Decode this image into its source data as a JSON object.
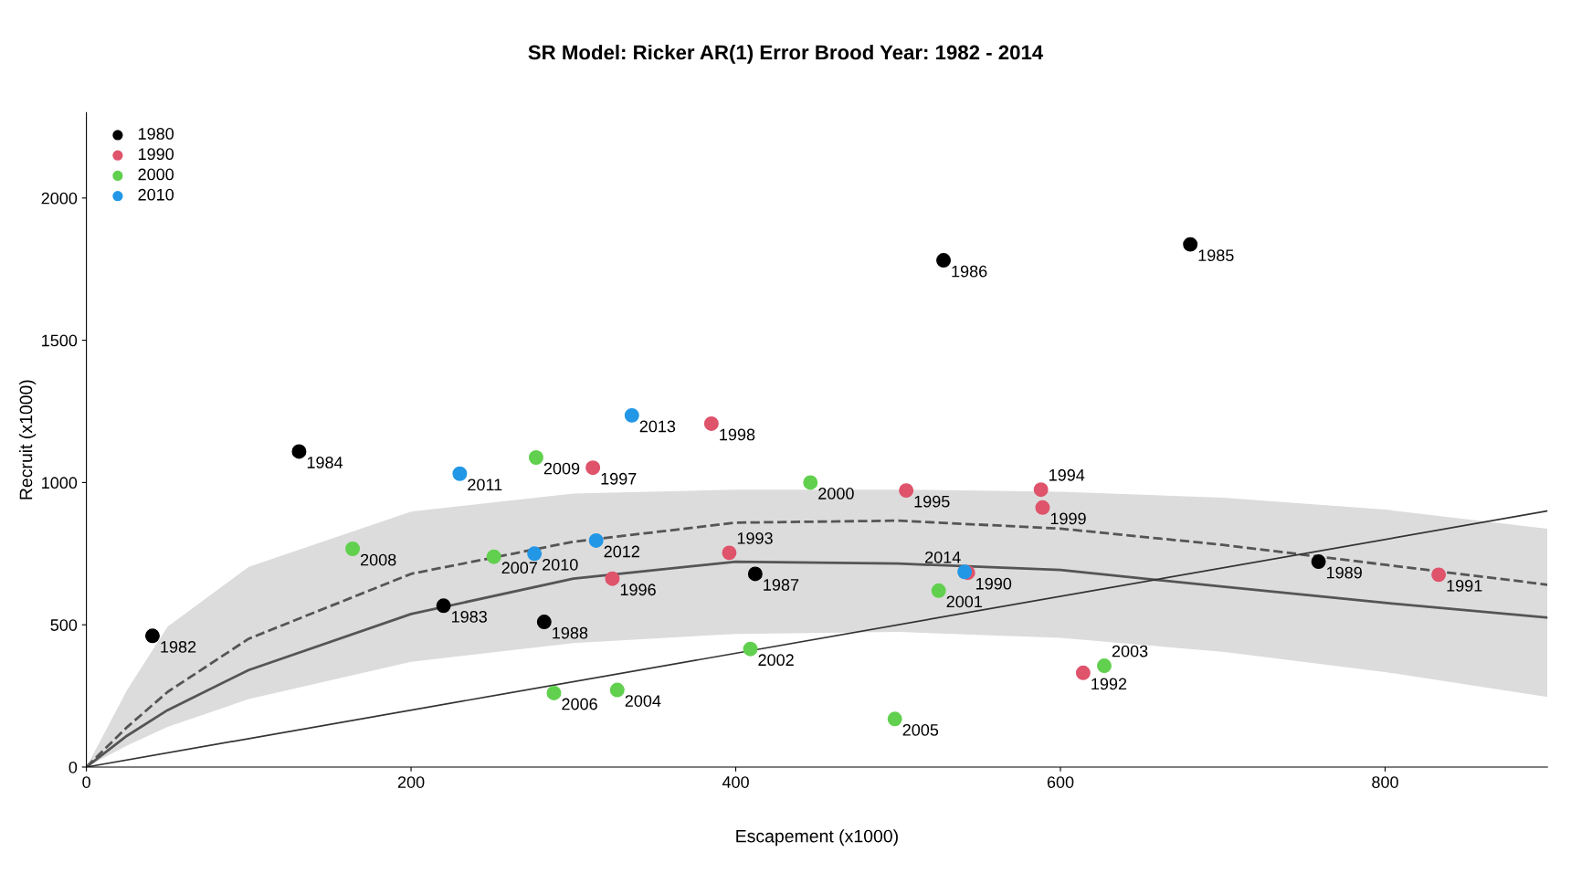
{
  "chart_data": {
    "type": "scatter",
    "title": "SR Model: Ricker AR(1) Error Brood Year: 1982 - 2014",
    "xlabel": "Escapement (x1000)",
    "ylabel": "Recruit (x1000)",
    "xlim": [
      0,
      900
    ],
    "ylim": [
      0,
      2300
    ],
    "xticks": [
      0,
      200,
      400,
      600,
      800
    ],
    "yticks": [
      0,
      500,
      1000,
      1500,
      2000
    ],
    "grid": false,
    "legend": "top left",
    "marker": "circle",
    "series": [
      {
        "name": "1980",
        "color": "#000000",
        "x": [
          40.7,
          220,
          131,
          680,
          528,
          412,
          282,
          759
        ],
        "values": [
          461,
          567,
          1109,
          1837,
          1781,
          679,
          510,
          722
        ]
      },
      {
        "name": "1990",
        "color": "#df536b",
        "x": [
          543,
          833,
          614,
          396,
          588,
          505,
          324,
          312,
          385,
          589
        ],
        "values": [
          683,
          676,
          331,
          753,
          975,
          972,
          662,
          1052,
          1207,
          912
        ]
      },
      {
        "name": "2000",
        "color": "#61d04f",
        "x": [
          446,
          525,
          409,
          627,
          327,
          498,
          288,
          251,
          164,
          277
        ],
        "values": [
          1000,
          620,
          415,
          356,
          271,
          169,
          260,
          739,
          767,
          1088
        ]
      },
      {
        "name": "2010",
        "color": "#2297e6",
        "x": [
          276,
          230,
          314,
          336,
          541
        ],
        "values": [
          750,
          1031,
          796,
          1236,
          686
        ]
      },
      {
        "type": "line",
        "marker": "none",
        "color": "#555555",
        "line_style": "dashed",
        "x": [
          0,
          25,
          50,
          100,
          200,
          300,
          400,
          500,
          600,
          700,
          800,
          900
        ],
        "values": [
          0,
          140,
          264,
          451,
          679,
          792,
          859,
          866,
          838,
          781,
          711,
          641
        ]
      },
      {
        "type": "line",
        "marker": "none",
        "color": "#555555",
        "line_style": "solid",
        "x": [
          0,
          25,
          50,
          100,
          200,
          300,
          400,
          500,
          600,
          700,
          800,
          900
        ],
        "values": [
          0,
          110,
          200,
          341,
          538,
          662,
          722,
          715,
          693,
          634,
          577,
          525
        ],
        "lower": [
          0,
          75,
          141,
          239,
          370,
          436,
          468,
          475,
          454,
          405,
          334,
          246
        ],
        "upper": [
          0,
          270,
          493,
          704,
          898,
          961,
          975,
          975,
          968,
          947,
          905,
          838
        ]
      },
      {
        "type": "line",
        "marker": "none",
        "color": "#333333",
        "line_style": "solid",
        "x": [
          0,
          900
        ],
        "values": [
          0,
          900
        ]
      }
    ],
    "annotations": [
      {
        "text": "1982",
        "x": 40.7,
        "y": 461
      },
      {
        "text": "1983",
        "x": 220,
        "y": 567
      },
      {
        "text": "1984",
        "x": 131,
        "y": 1109
      },
      {
        "text": "1985",
        "x": 680,
        "y": 1837
      },
      {
        "text": "1986",
        "x": 528,
        "y": 1781
      },
      {
        "text": "1987",
        "x": 412,
        "y": 679
      },
      {
        "text": "1988",
        "x": 282,
        "y": 510
      },
      {
        "text": "1989",
        "x": 759,
        "y": 722
      },
      {
        "text": "1990",
        "x": 543,
        "y": 683
      },
      {
        "text": "1991",
        "x": 833,
        "y": 676
      },
      {
        "text": "1992",
        "x": 614,
        "y": 331
      },
      {
        "text": "1993",
        "x": 396,
        "y": 753
      },
      {
        "text": "1994",
        "x": 588,
        "y": 975
      },
      {
        "text": "1995",
        "x": 505,
        "y": 972
      },
      {
        "text": "1996",
        "x": 324,
        "y": 662
      },
      {
        "text": "1997",
        "x": 312,
        "y": 1052
      },
      {
        "text": "1998",
        "x": 385,
        "y": 1207
      },
      {
        "text": "1999",
        "x": 589,
        "y": 912
      },
      {
        "text": "2000",
        "x": 446,
        "y": 1000
      },
      {
        "text": "2001",
        "x": 525,
        "y": 620
      },
      {
        "text": "2002",
        "x": 409,
        "y": 415
      },
      {
        "text": "2003",
        "x": 627,
        "y": 356
      },
      {
        "text": "2004",
        "x": 327,
        "y": 271
      },
      {
        "text": "2005",
        "x": 498,
        "y": 169
      },
      {
        "text": "2006",
        "x": 288,
        "y": 260
      },
      {
        "text": "2007",
        "x": 251,
        "y": 739
      },
      {
        "text": "2008",
        "x": 164,
        "y": 767
      },
      {
        "text": "2009",
        "x": 277,
        "y": 1088
      },
      {
        "text": "2010",
        "x": 276,
        "y": 750
      },
      {
        "text": "2011",
        "x": 230,
        "y": 1031
      },
      {
        "text": "2012",
        "x": 314,
        "y": 796
      },
      {
        "text": "2013",
        "x": 336,
        "y": 1236
      },
      {
        "text": "2014",
        "x": 541,
        "y": 686
      }
    ]
  }
}
